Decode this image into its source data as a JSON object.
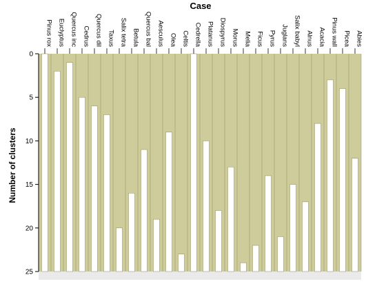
{
  "chart_data": {
    "type": "bar",
    "title": "Case",
    "xlabel": "",
    "ylabel": "Number of clusters",
    "ylim": [
      0,
      25
    ],
    "y_ticks": [
      0,
      5,
      10,
      15,
      20,
      25
    ],
    "grid": false,
    "categories": [
      "Pinus rox",
      "Euclyptus",
      "Quercus inc",
      "Cedrus",
      "Quercus dil",
      "Taxus",
      "Salix tetra",
      "Betula",
      "Quercus bal",
      "Aesculus",
      "Olea",
      "Celtis",
      "Cedrella",
      "Platanus",
      "Diospyrus",
      "Morus",
      "Melia",
      "Ficus",
      "Pyrus",
      "Juglans",
      "Salix babyl",
      "Alnus",
      "Acacia",
      "Pinus wall",
      "Picea",
      "Abies"
    ],
    "values": [
      0,
      2,
      1,
      5,
      6,
      7,
      20,
      16,
      11,
      19,
      9,
      23,
      0,
      10,
      18,
      13,
      24,
      22,
      14,
      21,
      15,
      17,
      8,
      3,
      4,
      12
    ],
    "colors": {
      "fill": "#cfcc9c",
      "stroke": "#8f8a5a",
      "gap": "#ffffff",
      "axis": "#000000",
      "background": "#ffffff",
      "bottom_strip": "#eaeaea"
    }
  }
}
